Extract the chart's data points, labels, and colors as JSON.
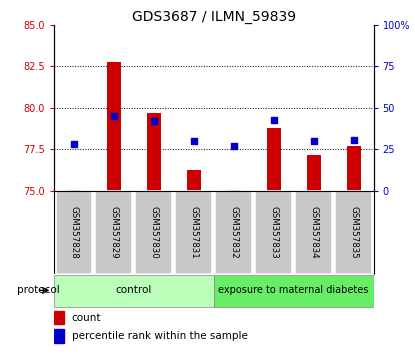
{
  "title": "GDS3687 / ILMN_59839",
  "samples": [
    "GSM357828",
    "GSM357829",
    "GSM357830",
    "GSM357831",
    "GSM357832",
    "GSM357833",
    "GSM357834",
    "GSM357835"
  ],
  "counts": [
    75.08,
    82.75,
    79.72,
    76.28,
    75.08,
    78.82,
    77.18,
    77.72
  ],
  "percentiles": [
    28,
    45,
    42,
    30,
    27,
    43,
    30,
    31
  ],
  "ylim_left": [
    75,
    85
  ],
  "ylim_right": [
    0,
    100
  ],
  "yticks_left": [
    75,
    77.5,
    80,
    82.5,
    85
  ],
  "yticks_right": [
    0,
    25,
    50,
    75,
    100
  ],
  "ytick_labels_right": [
    "0",
    "25",
    "50",
    "75",
    "100%"
  ],
  "bar_color": "#cc0000",
  "square_color": "#0000cc",
  "bar_bottom": 75,
  "control_samples": 4,
  "control_label": "control",
  "treatment_label": "exposure to maternal diabetes",
  "control_color": "#bbffbb",
  "treatment_color": "#66ee66",
  "protocol_label": "protocol",
  "legend_count": "count",
  "legend_percentile": "percentile rank within the sample",
  "title_fontsize": 10,
  "axis_label_color_left": "#cc0000",
  "axis_label_color_right": "#0000cc",
  "xlabel_bg_color": "#c8c8c8",
  "bar_width": 0.35
}
